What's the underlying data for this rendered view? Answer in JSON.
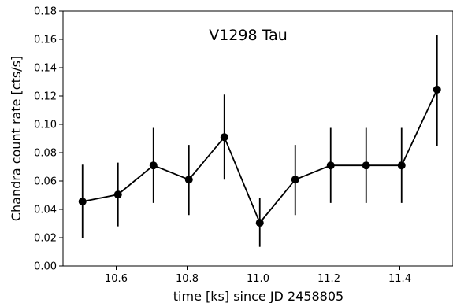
{
  "chart_data": {
    "type": "line",
    "title": "V1298 Tau",
    "xlabel": "time [ks] since JD 2458805",
    "ylabel": "Chandra count rate [cts/s]",
    "xlim": [
      10.45,
      11.55
    ],
    "ylim": [
      0.0,
      0.18
    ],
    "xticks": [
      10.6,
      10.8,
      11.0,
      11.2,
      11.4
    ],
    "xtick_labels": [
      "10.6",
      "10.8",
      "11.0",
      "11.2",
      "11.4"
    ],
    "yticks": [
      0.0,
      0.02,
      0.04,
      0.06,
      0.08,
      0.1,
      0.12,
      0.14,
      0.16,
      0.18
    ],
    "ytick_labels": [
      "0.00",
      "0.02",
      "0.04",
      "0.06",
      "0.08",
      "0.10",
      "0.12",
      "0.14",
      "0.16",
      "0.18"
    ],
    "grid": false,
    "legend": "none",
    "line_color": "#000000",
    "series": [
      {
        "x": [
          10.505,
          10.605,
          10.705,
          10.805,
          10.905,
          11.005,
          11.105,
          11.205,
          11.305,
          11.405,
          11.505
        ],
        "y": [
          0.0455,
          0.0505,
          0.071,
          0.061,
          0.091,
          0.0305,
          0.061,
          0.071,
          0.071,
          0.071,
          0.1245
        ],
        "err_low": [
          0.0195,
          0.028,
          0.0445,
          0.036,
          0.061,
          0.0135,
          0.036,
          0.0445,
          0.0445,
          0.0445,
          0.085
        ],
        "err_high": [
          0.0715,
          0.073,
          0.0975,
          0.0855,
          0.121,
          0.048,
          0.0855,
          0.0975,
          0.0975,
          0.0975,
          0.163
        ]
      }
    ]
  }
}
